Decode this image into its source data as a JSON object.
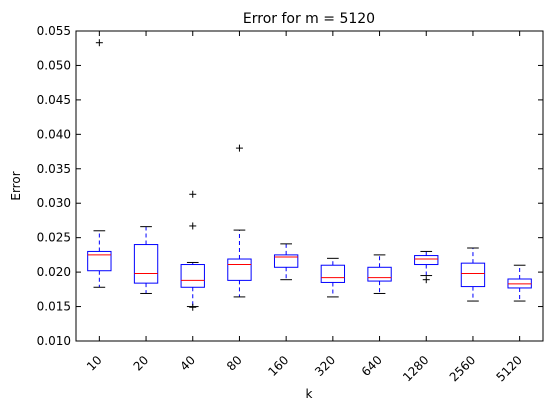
{
  "chart_data": {
    "type": "box",
    "title": "Error for m = 5120",
    "xlabel": "k",
    "ylabel": "Error",
    "ylim": [
      0.01,
      0.055
    ],
    "yticks": [
      "0.010",
      "0.015",
      "0.020",
      "0.025",
      "0.030",
      "0.035",
      "0.040",
      "0.045",
      "0.050",
      "0.055"
    ],
    "categories": [
      "10",
      "20",
      "40",
      "80",
      "160",
      "320",
      "640",
      "1280",
      "2560",
      "5120"
    ],
    "boxes": [
      {
        "category": "10",
        "whislo": 0.0178,
        "q1": 0.0202,
        "median": 0.0225,
        "q3": 0.023,
        "whishi": 0.026,
        "fliers": [
          0.0533
        ]
      },
      {
        "category": "20",
        "whislo": 0.0169,
        "q1": 0.0184,
        "median": 0.0198,
        "q3": 0.024,
        "whishi": 0.0266,
        "fliers": []
      },
      {
        "category": "40",
        "whislo": 0.015,
        "q1": 0.0178,
        "median": 0.0188,
        "q3": 0.0211,
        "whishi": 0.0214,
        "fliers": [
          0.0313,
          0.0267,
          0.0149
        ]
      },
      {
        "category": "80",
        "whislo": 0.0164,
        "q1": 0.0188,
        "median": 0.0211,
        "q3": 0.0219,
        "whishi": 0.0261,
        "fliers": [
          0.038
        ]
      },
      {
        "category": "160",
        "whislo": 0.0189,
        "q1": 0.0207,
        "median": 0.0222,
        "q3": 0.0225,
        "whishi": 0.0241,
        "fliers": []
      },
      {
        "category": "320",
        "whislo": 0.0164,
        "q1": 0.0185,
        "median": 0.0192,
        "q3": 0.021,
        "whishi": 0.022,
        "fliers": []
      },
      {
        "category": "640",
        "whislo": 0.0169,
        "q1": 0.0187,
        "median": 0.0192,
        "q3": 0.0207,
        "whishi": 0.0225,
        "fliers": []
      },
      {
        "category": "1280",
        "whislo": 0.0195,
        "q1": 0.0211,
        "median": 0.0219,
        "q3": 0.0224,
        "whishi": 0.023,
        "fliers": [
          0.0189
        ]
      },
      {
        "category": "2560",
        "whislo": 0.0158,
        "q1": 0.0179,
        "median": 0.0198,
        "q3": 0.0213,
        "whishi": 0.0235,
        "fliers": []
      },
      {
        "category": "5120",
        "whislo": 0.0158,
        "q1": 0.0177,
        "median": 0.0183,
        "q3": 0.019,
        "whishi": 0.021,
        "fliers": []
      }
    ],
    "colors": {
      "box": "#0000ff",
      "median": "#ff0000",
      "whisker": "#0000ff",
      "cap": "#000000",
      "flier": "#000000"
    },
    "grid": false,
    "legend": "none"
  }
}
